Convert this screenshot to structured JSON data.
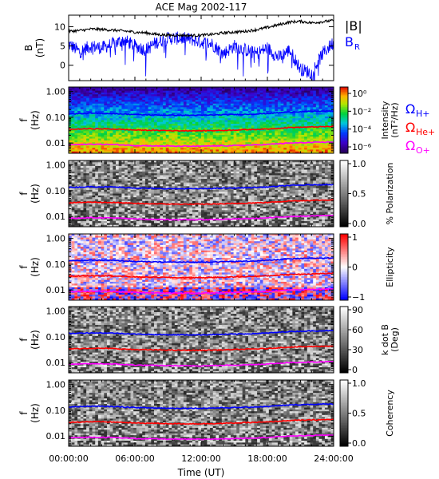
{
  "chart_data": {
    "title": "ACE Mag 2002-117",
    "type": "line",
    "time_ticks": [
      "00:00:00",
      "06:00:00",
      "12:00:00",
      "18:00:00",
      "24:00:00"
    ],
    "time_hours": [
      0,
      6,
      12,
      18,
      24
    ],
    "xlabel": "Time (UT)",
    "colors": {
      "B_mag": "#000000",
      "B_R": "#0000ff",
      "H": "#0000ff",
      "He": "#ff0000",
      "O": "#ff00ff"
    },
    "panels": [
      {
        "id": "B",
        "type": "line",
        "ylabel_top": "B",
        "ylabel_bottom": "(nT)",
        "yticks": [
          "0",
          "5",
          "10"
        ],
        "ytick_values": [
          0,
          5,
          10
        ],
        "ylim": [
          -4,
          13
        ],
        "legend": [
          "|B|",
          "B",
          "R"
        ],
        "series": [
          {
            "name": "|B|",
            "x": [
              0,
              1,
              2,
              3,
              4,
              5,
              6,
              7,
              8,
              9,
              10,
              11,
              12,
              13,
              14,
              15,
              16,
              17,
              18,
              19,
              20,
              21,
              22,
              23,
              24
            ],
            "values": [
              8.8,
              9.0,
              9.4,
              9.3,
              9.1,
              8.9,
              8.6,
              8.4,
              8.0,
              7.8,
              7.8,
              7.7,
              7.8,
              8.0,
              8.4,
              8.6,
              8.8,
              9.2,
              9.8,
              10.5,
              11.2,
              11.4,
              11.0,
              11.3,
              11.6
            ]
          },
          {
            "name": "B_R",
            "x": [
              0,
              1,
              2,
              3,
              4,
              5,
              6,
              7,
              8,
              9,
              10,
              11,
              12,
              13,
              14,
              15,
              16,
              17,
              18,
              19,
              20,
              21,
              22,
              23,
              24
            ],
            "values": [
              5.5,
              3.5,
              5.0,
              4.5,
              5.5,
              6.5,
              5.0,
              4.0,
              6.0,
              7.0,
              7.0,
              6.8,
              6.0,
              5.5,
              3.0,
              5.0,
              4.0,
              3.0,
              4.5,
              2.0,
              4.0,
              -1.0,
              -2.0,
              3.0,
              6.0
            ]
          }
        ]
      },
      {
        "id": "intensity",
        "type": "heatmap",
        "ylabel_top": "f",
        "ylabel_bottom": "(Hz)",
        "yticks": [
          "1.00",
          "0.10",
          "0.01"
        ],
        "ytick_values": [
          1.0,
          0.1,
          0.01
        ],
        "colorbar_label": "Intensity",
        "colorbar_unit": "(nT²/Hz)",
        "colorbar_ticks": [
          "10⁰",
          "10⁻²",
          "10⁻⁴",
          "10⁻⁶"
        ],
        "colorbar_tick_values": [
          1,
          0.01,
          0.0001,
          1e-06
        ],
        "colormap": "rainbow",
        "legend": [
          {
            "text": "Ω",
            "sub": "H+",
            "color": "#0000ff"
          },
          {
            "text": "Ω",
            "sub": "He+",
            "color": "#ff0000"
          },
          {
            "text": "Ω",
            "sub": "O+",
            "color": "#ff00ff"
          }
        ]
      },
      {
        "id": "polarization",
        "type": "heatmap",
        "ylabel_top": "f",
        "ylabel_bottom": "(Hz)",
        "yticks": [
          "1.00",
          "0.10",
          "0.01"
        ],
        "ytick_values": [
          1.0,
          0.1,
          0.01
        ],
        "colorbar_label": "% Polarization",
        "colorbar_ticks": [
          "1.0",
          "0.5",
          "0.0"
        ],
        "colorbar_tick_values": [
          1.0,
          0.5,
          0.0
        ],
        "colormap": "gray"
      },
      {
        "id": "ellipticity",
        "type": "heatmap",
        "ylabel_top": "f",
        "ylabel_bottom": "(Hz)",
        "yticks": [
          "1.00",
          "0.10",
          "0.01"
        ],
        "ytick_values": [
          1.0,
          0.1,
          0.01
        ],
        "colorbar_label": "Ellipticity",
        "colorbar_ticks": [
          "1",
          "0",
          "−1"
        ],
        "colorbar_tick_values": [
          1,
          0,
          -1
        ],
        "colormap": "bwr"
      },
      {
        "id": "kdotb",
        "type": "heatmap",
        "ylabel_top": "f",
        "ylabel_bottom": "(Hz)",
        "yticks": [
          "1.00",
          "0.10",
          "0.01"
        ],
        "ytick_values": [
          1.0,
          0.1,
          0.01
        ],
        "colorbar_label": "k dot B",
        "colorbar_unit": "(Deg)",
        "colorbar_ticks": [
          "90",
          "60",
          "30",
          "0"
        ],
        "colorbar_tick_values": [
          90,
          60,
          30,
          0
        ],
        "colormap": "gray"
      },
      {
        "id": "coherency",
        "type": "heatmap",
        "ylabel_top": "f",
        "ylabel_bottom": "(Hz)",
        "yticks": [
          "1.00",
          "0.10",
          "0.01"
        ],
        "ytick_values": [
          1.0,
          0.1,
          0.01
        ],
        "colorbar_label": "Coherency",
        "colorbar_ticks": [
          "1.0",
          "0.5",
          "0.0"
        ],
        "colorbar_tick_values": [
          1.0,
          0.5,
          0.0
        ],
        "colormap": "gray"
      }
    ],
    "gyrofrequencies": {
      "x": [
        0,
        2,
        4,
        6,
        8,
        10,
        12,
        14,
        16,
        18,
        20,
        22,
        24
      ],
      "H": [
        0.135,
        0.143,
        0.14,
        0.128,
        0.122,
        0.12,
        0.12,
        0.125,
        0.13,
        0.14,
        0.16,
        0.17,
        0.175
      ],
      "He": [
        0.034,
        0.036,
        0.035,
        0.032,
        0.031,
        0.03,
        0.03,
        0.031,
        0.033,
        0.035,
        0.04,
        0.042,
        0.044
      ],
      "O": [
        0.0085,
        0.009,
        0.0088,
        0.008,
        0.0077,
        0.0075,
        0.0075,
        0.0078,
        0.0082,
        0.0088,
        0.01,
        0.0105,
        0.011
      ]
    }
  }
}
